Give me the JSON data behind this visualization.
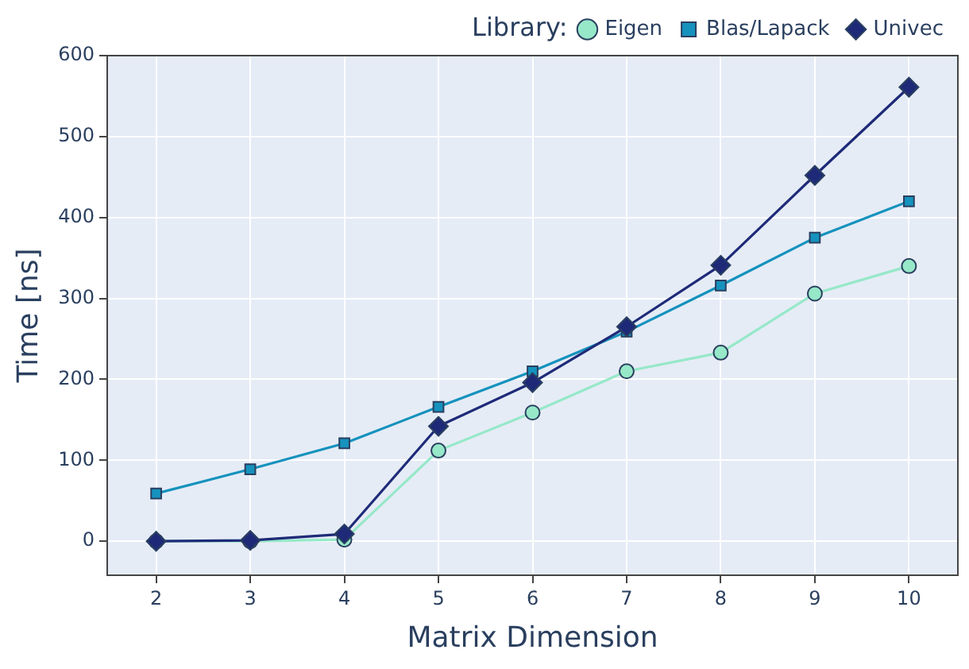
{
  "chart_data": {
    "type": "line",
    "xlabel": "Matrix Dimension",
    "ylabel": "Time [ns]",
    "legend_title": "Library:",
    "x": [
      2,
      3,
      4,
      5,
      6,
      7,
      8,
      9,
      10
    ],
    "series": [
      {
        "name": "Eigen",
        "color": "#96e8c8",
        "marker": "circle",
        "values": [
          0,
          0,
          2,
          112,
          159,
          210,
          233,
          306,
          340
        ]
      },
      {
        "name": "Blas/Lapack",
        "color": "#1592bd",
        "marker": "square",
        "values": [
          59,
          89,
          121,
          166,
          210,
          259,
          316,
          375,
          420
        ]
      },
      {
        "name": "Univec",
        "color": "#1e2a78",
        "marker": "diamond",
        "values": [
          0,
          1,
          9,
          142,
          196,
          265,
          341,
          452,
          561
        ]
      }
    ],
    "xlim": [
      1.48,
      10.52
    ],
    "xticks": [
      2,
      3,
      4,
      5,
      6,
      7,
      8,
      9,
      10
    ],
    "ylim": [
      -42,
      600
    ],
    "yticks": [
      0,
      100,
      200,
      300,
      400,
      500,
      600
    ],
    "grid": true,
    "legend": "top right"
  }
}
